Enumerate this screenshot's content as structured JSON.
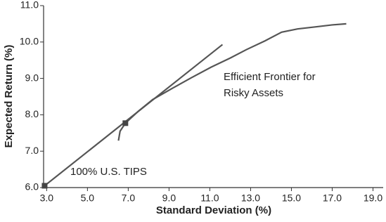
{
  "chart_data": {
    "type": "line",
    "xlabel": "Standard Deviation (%)",
    "ylabel": "Expected Return (%)",
    "xlim": [
      2.85,
      19.5
    ],
    "ylim": [
      6.0,
      11.0
    ],
    "xticks": [
      {
        "value": 3,
        "label": "3.0"
      },
      {
        "value": 5,
        "label": "5.0"
      },
      {
        "value": 7,
        "label": "7.0"
      },
      {
        "value": 9,
        "label": "9.0"
      },
      {
        "value": 11,
        "label": "11.0"
      },
      {
        "value": 13,
        "label": "13.0"
      },
      {
        "value": 15,
        "label": "15.0"
      },
      {
        "value": 17,
        "label": "17.0"
      },
      {
        "value": 19,
        "label": "19.0"
      }
    ],
    "yticks": [
      {
        "value": 6,
        "label": "6.0"
      },
      {
        "value": 7,
        "label": "7.0"
      },
      {
        "value": 8,
        "label": "8.0"
      },
      {
        "value": 9,
        "label": "9.0"
      },
      {
        "value": 10,
        "label": "10.0"
      },
      {
        "value": 11,
        "label": "11.0"
      }
    ],
    "series": [
      {
        "color": "#555555",
        "x": [
          6.52,
          6.6,
          6.86,
          7.5,
          8.2,
          9.17,
          10.1,
          11.07,
          12.0,
          12.79,
          13.7,
          14.52,
          15.3,
          16.24,
          17.0,
          17.69
        ],
        "values": [
          7.29,
          7.55,
          7.77,
          8.1,
          8.42,
          8.73,
          9.02,
          9.31,
          9.56,
          9.79,
          10.03,
          10.27,
          10.36,
          10.42,
          10.47,
          10.5
        ]
      },
      {
        "color": "#555555",
        "x": [
          2.9,
          11.62
        ],
        "values": [
          6.05,
          9.93
        ]
      }
    ],
    "markers": {
      "color": "#444444",
      "x": [
        2.9,
        6.86
      ],
      "values": [
        6.05,
        7.77
      ]
    },
    "annotations": [
      "Efficient Frontier for",
      "Risky Assets",
      "100% U.S. TIPS"
    ]
  }
}
